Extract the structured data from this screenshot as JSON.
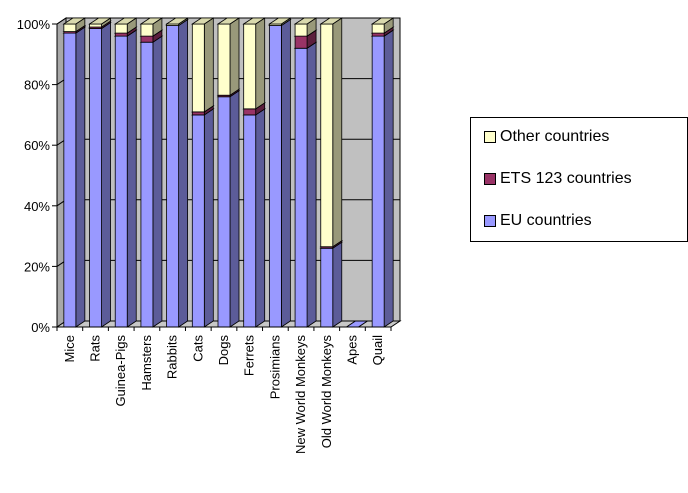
{
  "chart_data": {
    "type": "bar",
    "stacked": true,
    "percent_stacked": true,
    "three_d": true,
    "categories": [
      "Mice",
      "Rats",
      "Guinea-Pigs",
      "Hamsters",
      "Rabbits",
      "Cats",
      "Dogs",
      "Ferrets",
      "Prosimians",
      "New World Monkeys",
      "Old World Monkeys",
      "Apes",
      "Quail"
    ],
    "series": [
      {
        "name": "EU countries",
        "color": "#9999ff",
        "values": [
          97,
          98.5,
          96,
          94,
          99.5,
          70,
          76,
          70,
          99.5,
          92,
          26,
          0,
          96
        ]
      },
      {
        "name": "ETS 123 countries",
        "color": "#993366",
        "values": [
          0.5,
          0.5,
          1,
          2,
          0,
          1,
          0.5,
          2,
          0,
          4,
          0.5,
          0,
          1
        ]
      },
      {
        "name": "Other countries",
        "color": "#ffffcc",
        "values": [
          2.5,
          1,
          3,
          4,
          0.5,
          29,
          23.5,
          28,
          0.5,
          4,
          73.5,
          0,
          3
        ]
      }
    ],
    "y_ticks": [
      "0%",
      "20%",
      "40%",
      "60%",
      "80%",
      "100%"
    ],
    "ylim": [
      0,
      100
    ],
    "grid": true,
    "legend_position": "right",
    "legend_order": [
      "Other countries",
      "ETS 123 countries",
      "EU countries"
    ],
    "wall_color": "#c0c0c0"
  }
}
